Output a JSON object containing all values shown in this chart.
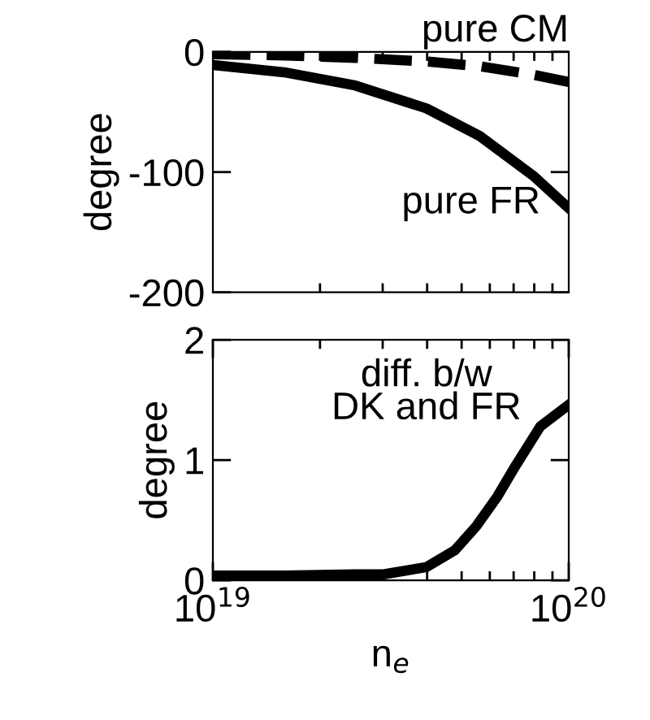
{
  "chart_data": [
    {
      "type": "line",
      "ylabel": "degree",
      "xlim": [
        1e+19,
        1e+20
      ],
      "ylim": [
        -200,
        0
      ],
      "yticks": [
        0,
        -100,
        -200
      ],
      "log": "x",
      "tick_labels": "y",
      "grid": false,
      "annotations": [
        "pure CM",
        "pure FR"
      ],
      "series": [
        {
          "color": "#000000",
          "line_style": "dashed",
          "x": [
            1e+19,
            1.585e+19,
            2.512e+19,
            3.981e+19,
            5.623e+19,
            7.943e+19,
            1e+20
          ],
          "values": [
            -2,
            -3,
            -5,
            -8,
            -12,
            -19,
            -25
          ]
        },
        {
          "color": "#000000",
          "line_style": "solid",
          "x": [
            1e+19,
            1.585e+19,
            2.512e+19,
            3.981e+19,
            5.623e+19,
            7.943e+19,
            1e+20
          ],
          "values": [
            -11,
            -17,
            -28,
            -47,
            -70,
            -103,
            -130
          ]
        }
      ]
    },
    {
      "type": "line",
      "ylabel": "degree",
      "xlabel": "n$_{e}$",
      "xlim": [
        1e+19,
        1e+20
      ],
      "ylim": [
        0,
        2
      ],
      "yticks": [
        0,
        1,
        2
      ],
      "log": "x",
      "grid": false,
      "xticks": [
        {
          "value": 1e+19,
          "label": "10$^{19}$"
        },
        {
          "value": 1e+20,
          "label": "10$^{20}$"
        }
      ],
      "annotations": [
        "diff. b/w\nDK and FR"
      ],
      "series": [
        {
          "color": "#000000",
          "line_style": "solid",
          "x": [
            1e+19,
            1.585e+19,
            2.512e+19,
            3.02e+19,
            3.981e+19,
            4.786e+19,
            5.495e+19,
            6.31e+19,
            7.079e+19,
            8.318e+19,
            1e+20
          ],
          "values": [
            0.04,
            0.04,
            0.05,
            0.05,
            0.11,
            0.25,
            0.45,
            0.7,
            0.95,
            1.28,
            1.46
          ]
        }
      ]
    }
  ]
}
